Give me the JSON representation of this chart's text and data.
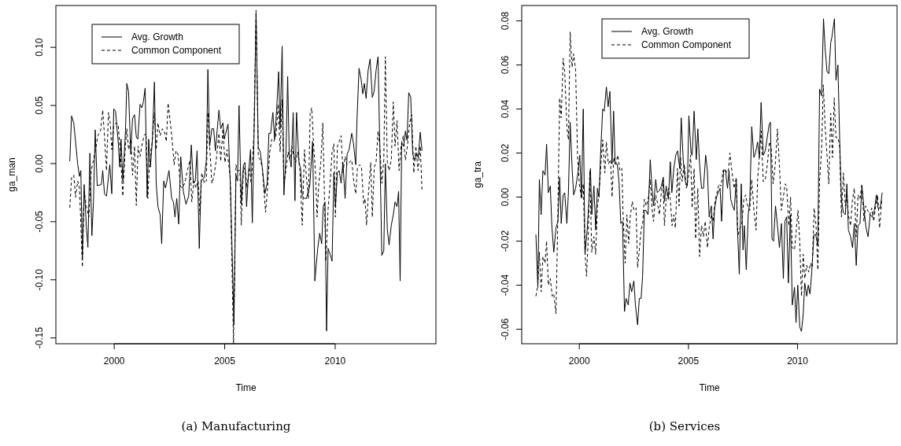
{
  "chart_data": [
    {
      "type": "line",
      "xlabel": "Time",
      "ylabel": "ga_man",
      "annotations": [
        "(a) Manufacturing"
      ],
      "legend": "top left",
      "xlim": [
        1997.36,
        2014.56
      ],
      "ylim": [
        -0.155,
        0.136
      ],
      "xticks": [
        2000,
        2005,
        2010
      ],
      "yticks": [
        {
          "value": -0.15,
          "label": "-0.15"
        },
        {
          "value": -0.1,
          "label": "-0.10"
        },
        {
          "value": -0.05,
          "label": "-0.05"
        },
        {
          "value": 0,
          "label": "0.00"
        },
        {
          "value": 0.05,
          "label": "0.05"
        },
        {
          "value": 0.1,
          "label": "0.10"
        }
      ],
      "series": [
        {
          "name": "Avg. Growth",
          "color": "#000000",
          "line_style": "solid",
          "x": [
            1997.99,
            1998.07,
            1998.17,
            1998.35,
            1998.43,
            1998.49,
            1998.56,
            1998.64,
            1998.74,
            1998.81,
            1998.9,
            1998.99,
            1999.06,
            1999.14,
            1999.23,
            1999.42,
            1999.48,
            1999.56,
            1999.65,
            1999.8,
            1999.89,
            1999.98,
            2000.06,
            2000.18,
            2000.25,
            2000.31,
            2000.39,
            2000.51,
            2000.57,
            2000.65,
            2000.75,
            2000.83,
            2000.92,
            2001.0,
            2001.07,
            2001.17,
            2001.25,
            2001.32,
            2001.4,
            2001.49,
            2001.56,
            2001.64,
            2001.73,
            2001.82,
            2001.9,
            2001.98,
            2002.08,
            2002.15,
            2002.24,
            2002.32,
            2002.48,
            2002.6,
            2002.68,
            2002.75,
            2002.83,
            2002.92,
            2003.01,
            2003.13,
            2003.25,
            2003.37,
            2003.49,
            2003.58,
            2003.67,
            2003.75,
            2003.85,
            2003.93,
            2004.08,
            2004.17,
            2004.24,
            2004.32,
            2004.42,
            2004.5,
            2004.58,
            2004.74,
            2004.82,
            2004.92,
            2004.98,
            2005.15,
            2005.27,
            2005.42,
            2005.51,
            2005.58,
            2005.65,
            2005.75,
            2005.85,
            2005.92,
            2005.99,
            2006.08,
            2006.17,
            2006.25,
            2006.35,
            2006.42,
            2006.52,
            2006.61,
            2006.7,
            2006.82,
            2006.92,
            2007.0,
            2007.08,
            2007.18,
            2007.26,
            2007.35,
            2007.44,
            2007.51,
            2007.6,
            2007.68,
            2007.77,
            2007.85,
            2007.92,
            2008.01,
            2008.1,
            2008.18,
            2008.25,
            2008.37,
            2008.43,
            2008.51,
            2008.61,
            2008.7,
            2008.85,
            2008.98,
            2009.08,
            2009.21,
            2009.3,
            2009.39,
            2009.46,
            2009.54,
            2009.61,
            2009.68,
            2009.77,
            2009.86,
            2009.94,
            2010.01,
            2010.1,
            2010.18,
            2010.27,
            2010.35,
            2010.45,
            2010.54,
            2010.63,
            2010.75,
            2010.83,
            2010.93,
            2010.99,
            2011.08,
            2011.17,
            2011.25,
            2011.32,
            2011.4,
            2011.49,
            2011.58,
            2011.68,
            2011.76,
            2011.85,
            2011.94,
            2012.02,
            2012.11,
            2012.2,
            2012.27,
            2012.36,
            2012.44,
            2012.54,
            2012.63,
            2012.71,
            2012.8,
            2012.87,
            2012.94,
            2013.01,
            2013.1,
            2013.18,
            2013.25,
            2013.33,
            2013.42,
            2013.51,
            2013.61,
            2013.69,
            2013.76,
            2013.85,
            2013.93
          ],
          "values": [
            0.002,
            0.041,
            0.035,
            -0.001,
            -0.011,
            -0.006,
            -0.081,
            -0.018,
            -0.055,
            -0.072,
            0.009,
            -0.062,
            -0.033,
            0.029,
            -0.019,
            -0.018,
            -0.006,
            -0.026,
            -0.028,
            -0.001,
            -0.026,
            0.047,
            0.045,
            0.019,
            -0.003,
            0.021,
            -0.015,
            0.028,
            0.069,
            0.062,
            0.008,
            0.039,
            0.042,
            0.023,
            0.021,
            0.051,
            0.048,
            0.053,
            0.065,
            -0.029,
            0.021,
            -0.003,
            0.021,
            0.07,
            -0.017,
            -0.037,
            -0.044,
            -0.069,
            -0.015,
            -0.021,
            -0.006,
            -0.03,
            -0.033,
            -0.046,
            -0.03,
            -0.052,
            0.006,
            -0.024,
            -0.035,
            -0.028,
            0.016,
            -0.017,
            -0.015,
            0.011,
            -0.073,
            -0.015,
            -0.012,
            0.003,
            0.081,
            0.015,
            0.03,
            0.03,
            0.011,
            0.046,
            0.03,
            0.035,
            0.021,
            0.034,
            -0.026,
            -0.139,
            -0.01,
            -0.015,
            0.05,
            -0.035,
            -0.001,
            0.001,
            -0.037,
            -0.008,
            0.012,
            -0.051,
            0.046,
            0.13,
            0.014,
            0.01,
            -0.003,
            -0.026,
            -0.017,
            0.026,
            0.026,
            0.044,
            0.021,
            0.046,
            0.079,
            0.03,
            0.101,
            -0.027,
            0.006,
            0.075,
            0.008,
            -0.003,
            0.044,
            -0.032,
            0.044,
            -0.001,
            -0.003,
            -0.028,
            -0.03,
            -0.03,
            -0.019,
            0.019,
            -0.101,
            -0.073,
            -0.06,
            -0.069,
            -0.037,
            -0.033,
            -0.144,
            -0.073,
            -0.078,
            -0.084,
            -0.008,
            -0.037,
            -0.008,
            -0.006,
            -0.017,
            0.001,
            -0.03,
            0.008,
            0.012,
            0.026,
            0.017,
            -0.001,
            0.039,
            0.082,
            0.073,
            0.06,
            0.069,
            0.056,
            0.08,
            0.09,
            0.057,
            0.062,
            0.08,
            0.092,
            0.015,
            -0.079,
            -0.075,
            0.0,
            -0.057,
            -0.07,
            -0.053,
            -0.044,
            -0.033,
            -0.037,
            -0.024,
            -0.101,
            0.018,
            0.015,
            0.028,
            0.02,
            0.061,
            0.057,
            0.008,
            0.003,
            0.009,
            0.005,
            0.027,
            0.011
          ]
        },
        {
          "name": "Common Component",
          "color": "#000000",
          "line_style": "dashed",
          "x": [
            1997.99,
            1998.07,
            1998.17,
            1998.25,
            1998.35,
            1998.43,
            1998.56,
            1998.64,
            1998.74,
            1998.85,
            1998.96,
            1999.06,
            1999.14,
            1999.26,
            1999.38,
            1999.48,
            1999.56,
            1999.65,
            1999.74,
            1999.82,
            1999.89,
            1999.98,
            2000.1,
            2000.18,
            2000.27,
            2000.39,
            2000.49,
            2000.57,
            2000.65,
            2000.75,
            2000.83,
            2000.92,
            2001.0,
            2001.08,
            2001.17,
            2001.25,
            2001.35,
            2001.44,
            2001.52,
            2001.61,
            2001.7,
            2001.82,
            2001.9,
            2001.98,
            2002.08,
            2002.18,
            2002.27,
            2002.36,
            2002.44,
            2002.54,
            2002.63,
            2002.71,
            2002.8,
            2002.89,
            2002.99,
            2003.07,
            2003.19,
            2003.31,
            2003.43,
            2003.51,
            2003.61,
            2003.7,
            2003.8,
            2003.88,
            2003.96,
            2004.08,
            2004.17,
            2004.24,
            2004.32,
            2004.42,
            2004.5,
            2004.62,
            2004.74,
            2004.82,
            2004.92,
            2005.01,
            2005.11,
            2005.25,
            2005.4,
            2005.51,
            2005.58,
            2005.69,
            2005.75,
            2005.85,
            2005.93,
            2006.01,
            2006.11,
            2006.2,
            2006.32,
            2006.42,
            2006.52,
            2006.61,
            2006.7,
            2006.85,
            2006.94,
            2007.04,
            2007.13,
            2007.23,
            2007.32,
            2007.42,
            2007.51,
            2007.6,
            2007.68,
            2007.77,
            2007.87,
            2007.95,
            2008.04,
            2008.13,
            2008.21,
            2008.3,
            2008.39,
            2008.51,
            2008.61,
            2008.7,
            2008.79,
            2008.87,
            2008.94,
            2009.02,
            2009.11,
            2009.18,
            2009.26,
            2009.35,
            2009.44,
            2009.51,
            2009.58,
            2009.68,
            2009.77,
            2009.86,
            2009.94,
            2010.01,
            2010.1,
            2010.18,
            2010.27,
            2010.35,
            2010.45,
            2010.54,
            2010.63,
            2010.75,
            2010.85,
            2010.93,
            2011.01,
            2011.11,
            2011.19,
            2011.29,
            2011.35,
            2011.42,
            2011.51,
            2011.61,
            2011.68,
            2011.77,
            2011.85,
            2011.94,
            2012.02,
            2012.11,
            2012.2,
            2012.27,
            2012.36,
            2012.44,
            2012.54,
            2012.63,
            2012.71,
            2012.8,
            2012.89,
            2012.98,
            2013.08,
            2013.18,
            2013.27,
            2013.37,
            2013.46,
            2013.56,
            2013.65,
            2013.75,
            2013.85,
            2013.93
          ],
          "values": [
            -0.038,
            -0.012,
            -0.01,
            -0.029,
            -0.015,
            -0.021,
            -0.089,
            -0.024,
            -0.037,
            -0.046,
            -0.006,
            0.003,
            0.01,
            0.024,
            0.028,
            0.046,
            0.024,
            -0.006,
            0.044,
            0.035,
            0.012,
            0.033,
            0.035,
            0.033,
            0.012,
            -0.028,
            0.01,
            0.03,
            0.012,
            0.021,
            -0.01,
            0.015,
            -0.036,
            0.015,
            0.006,
            0.015,
            0.024,
            0.026,
            -0.03,
            0.006,
            0.015,
            0.044,
            0.012,
            0.035,
            0.024,
            0.03,
            0.028,
            0.019,
            0.052,
            0.035,
            0.019,
            -0.001,
            0.011,
            0.008,
            -0.019,
            -0.021,
            -0.017,
            -0.006,
            0.003,
            -0.033,
            -0.015,
            -0.021,
            -0.015,
            -0.044,
            -0.008,
            -0.017,
            -0.015,
            0.044,
            0.015,
            -0.017,
            -0.012,
            0.003,
            0.026,
            0.002,
            0.03,
            0.001,
            0.012,
            -0.012,
            -0.155,
            -0.001,
            -0.006,
            -0.006,
            -0.053,
            -0.003,
            -0.006,
            -0.021,
            -0.003,
            -0.017,
            0.024,
            0.132,
            0.006,
            0.003,
            -0.003,
            -0.042,
            -0.021,
            0.01,
            0.021,
            0.019,
            0.024,
            0.051,
            0.01,
            0.055,
            -0.017,
            -0.006,
            0.01,
            0.003,
            0.015,
            0.006,
            0.001,
            0.01,
            -0.001,
            -0.053,
            0.012,
            -0.012,
            -0.03,
            0.044,
            0.048,
            0.017,
            -0.008,
            -0.046,
            -0.017,
            0.001,
            0.035,
            -0.024,
            -0.084,
            -0.039,
            -0.017,
            0.01,
            0.017,
            -0.046,
            0.015,
            0.019,
            0.024,
            -0.008,
            0.006,
            -0.001,
            0.001,
            0.003,
            -0.017,
            -0.026,
            -0.003,
            -0.001,
            -0.003,
            -0.035,
            -0.03,
            -0.053,
            -0.024,
            0.001,
            -0.046,
            -0.003,
            0.001,
            0.028,
            0.015,
            -0.017,
            0.003,
            0.092,
            0.001,
            -0.006,
            0.003,
            0.053,
            0.015,
            0.037,
            -0.006,
            0.015,
            0.024,
            0.003,
            0.015,
            0.035,
            0.042,
            -0.008,
            0.015,
            -0.006,
            0.015,
            -0.024
          ]
        }
      ]
    },
    {
      "type": "line",
      "xlabel": "Time",
      "ylabel": "ga_tra",
      "annotations": [
        "(b) Services"
      ],
      "legend": "top left",
      "xlim": [
        1997.36,
        2014.56
      ],
      "ylim": [
        -0.0666,
        0.087
      ],
      "xticks": [
        2000,
        2005,
        2010
      ],
      "yticks": [
        {
          "value": -0.06,
          "label": "-0.06"
        },
        {
          "value": -0.04,
          "label": "-0.04"
        },
        {
          "value": -0.02,
          "label": "-0.02"
        },
        {
          "value": 0,
          "label": "0.00"
        },
        {
          "value": 0.02,
          "label": "0.02"
        },
        {
          "value": 0.04,
          "label": "0.04"
        },
        {
          "value": 0.06,
          "label": "0.06"
        },
        {
          "value": 0.08,
          "label": "0.08"
        }
      ],
      "series": [
        {
          "name": "Avg. Growth",
          "color": "#000000",
          "line_style": "solid",
          "x": [
            1998.01,
            1998.1,
            1998.17,
            1998.25,
            1998.33,
            1998.43,
            1998.5,
            1998.58,
            1998.67,
            1998.74,
            1998.83,
            1998.93,
            1999.02,
            1999.1,
            1999.17,
            1999.26,
            1999.33,
            1999.43,
            1999.5,
            1999.58,
            1999.67,
            1999.74,
            1999.83,
            1999.95,
            2000.02,
            2000.1,
            2000.18,
            2000.26,
            2000.36,
            2000.45,
            2000.51,
            2000.57,
            2000.67,
            2000.75,
            2000.83,
            2000.9,
            2000.99,
            2001.07,
            2001.14,
            2001.24,
            2001.32,
            2001.4,
            2001.5,
            2001.57,
            2001.64,
            2001.74,
            2001.82,
            2001.9,
            2001.98,
            2002.07,
            2002.14,
            2002.24,
            2002.32,
            2002.4,
            2002.5,
            2002.57,
            2002.67,
            2002.75,
            2002.83,
            2002.9,
            2002.98,
            2003.05,
            2003.15,
            2003.25,
            2003.33,
            2003.4,
            2003.5,
            2003.57,
            2003.67,
            2003.76,
            2003.85,
            2003.9,
            2003.98,
            2004.08,
            2004.17,
            2004.24,
            2004.33,
            2004.42,
            2004.5,
            2004.6,
            2004.67,
            2004.76,
            2004.86,
            2004.95,
            2005.02,
            2005.12,
            2005.17,
            2005.26,
            2005.36,
            2005.43,
            2005.51,
            2005.6,
            2005.69,
            2005.79,
            2005.87,
            2005.95,
            2006.05,
            2006.13,
            2006.2,
            2006.29,
            2006.36,
            2006.45,
            2006.52,
            2006.61,
            2006.7,
            2006.79,
            2006.86,
            2006.94,
            2007.02,
            2007.1,
            2007.19,
            2007.24,
            2007.33,
            2007.42,
            2007.5,
            2007.56,
            2007.65,
            2007.74,
            2007.81,
            2007.9,
            2008.0,
            2008.07,
            2008.17,
            2008.25,
            2008.33,
            2008.43,
            2008.52,
            2008.61,
            2008.7,
            2008.76,
            2008.83,
            2008.9,
            2008.99,
            2009.08,
            2009.17,
            2009.26,
            2009.35,
            2009.42,
            2009.5,
            2009.58,
            2009.67,
            2009.76,
            2009.86,
            2009.93,
            2010.01,
            2010.1,
            2010.18,
            2010.26,
            2010.33,
            2010.42,
            2010.49,
            2010.57,
            2010.65,
            2010.75,
            2010.83,
            2010.93,
            2011.01,
            2011.1,
            2011.19,
            2011.26,
            2011.35,
            2011.43,
            2011.52,
            2011.58,
            2011.69,
            2011.76,
            2011.85,
            2011.93,
            2012.01,
            2012.1,
            2012.19,
            2012.26,
            2012.33,
            2012.43,
            2012.52,
            2012.6,
            2012.69,
            2012.77,
            2012.86,
            2012.95,
            2013.05,
            2013.14,
            2013.23,
            2013.33,
            2013.42,
            2013.52,
            2013.61,
            2013.69,
            2013.79,
            2013.88
          ],
          "values": [
            -0.017,
            -0.041,
            0.008,
            -0.008,
            0.012,
            0.01,
            0.024,
            0.002,
            0.005,
            -0.013,
            -0.025,
            -0.014,
            -0.011,
            0.009,
            -0.012,
            0.001,
            0.002,
            -0.012,
            0.002,
            0.034,
            0.013,
            0.001,
            0.004,
            0.012,
            0.019,
            0.0,
            0.04,
            -0.026,
            -0.015,
            0.0,
            0.013,
            -0.008,
            0.005,
            -0.015,
            0.004,
            0.0,
            0.023,
            0.04,
            0.039,
            0.05,
            0.041,
            0.048,
            0.015,
            0.039,
            0.015,
            0.015,
            0.007,
            -0.012,
            -0.011,
            -0.052,
            -0.046,
            -0.049,
            -0.039,
            -0.043,
            -0.038,
            -0.049,
            -0.058,
            -0.046,
            -0.046,
            -0.036,
            -0.006,
            -0.006,
            -0.008,
            0.017,
            0.004,
            -0.004,
            0.008,
            0.002,
            0.003,
            0.005,
            0.009,
            -0.002,
            0.005,
            -0.001,
            0.016,
            0.002,
            0.013,
            0.019,
            0.021,
            0.013,
            0.036,
            0.017,
            0.007,
            0.005,
            0.037,
            0.02,
            0.019,
            0.039,
            0.017,
            0.031,
            0.015,
            0.004,
            0.004,
            0.019,
            0.012,
            -0.009,
            -0.004,
            -0.019,
            -0.005,
            0.0,
            0.002,
            0.004,
            -0.011,
            0.012,
            0.012,
            0.004,
            0.012,
            -0.001,
            -0.004,
            -0.006,
            0.008,
            -0.012,
            -0.035,
            0.006,
            -0.024,
            -0.013,
            -0.033,
            -0.008,
            -0.002,
            0.032,
            0.018,
            0.02,
            0.025,
            0.018,
            0.043,
            0.019,
            0.021,
            0.027,
            0.033,
            0.034,
            -0.019,
            -0.02,
            -0.004,
            -0.013,
            -0.023,
            -0.012,
            -0.037,
            -0.011,
            -0.009,
            -0.039,
            -0.008,
            -0.049,
            -0.041,
            -0.057,
            -0.04,
            -0.059,
            -0.061,
            -0.053,
            -0.039,
            -0.045,
            -0.04,
            -0.044,
            -0.034,
            -0.017,
            -0.017,
            -0.022,
            0.049,
            0.046,
            0.081,
            0.068,
            0.057,
            0.056,
            0.07,
            0.073,
            0.081,
            0.053,
            0.06,
            0.026,
            -0.001,
            -0.007,
            -0.008,
            0.006,
            -0.015,
            -0.018,
            -0.023,
            -0.012,
            -0.031,
            -0.013,
            -0.012,
            0.005,
            -0.006,
            -0.014,
            -0.018,
            -0.008,
            -0.009,
            -0.006,
            0.001,
            -0.005,
            -0.005,
            0.002
          ]
        },
        {
          "name": "Common Component",
          "color": "#000000",
          "line_style": "dashed",
          "x": [
            1998.01,
            1998.1,
            1998.17,
            1998.25,
            1998.33,
            1998.43,
            1998.5,
            1998.58,
            1998.67,
            1998.76,
            1998.83,
            1998.93,
            1999.0,
            1999.1,
            1999.17,
            1999.26,
            1999.33,
            1999.43,
            1999.5,
            1999.58,
            1999.67,
            1999.74,
            1999.83,
            1999.92,
            2000.0,
            2000.1,
            2000.18,
            2000.26,
            2000.33,
            2000.4,
            2000.48,
            2000.57,
            2000.67,
            2000.75,
            2000.83,
            2000.9,
            2001.0,
            2001.07,
            2001.17,
            2001.24,
            2001.33,
            2001.43,
            2001.5,
            2001.58,
            2001.67,
            2001.76,
            2001.86,
            2001.95,
            2002.0,
            2002.1,
            2002.18,
            2002.26,
            2002.33,
            2002.43,
            2002.5,
            2002.6,
            2002.67,
            2002.75,
            2002.83,
            2002.9,
            2002.98,
            2003.07,
            2003.17,
            2003.25,
            2003.33,
            2003.4,
            2003.5,
            2003.57,
            2003.67,
            2003.75,
            2003.83,
            2003.9,
            2003.98,
            2004.1,
            2004.17,
            2004.25,
            2004.33,
            2004.4,
            2004.5,
            2004.57,
            2004.64,
            2004.71,
            2004.81,
            2004.9,
            2005.0,
            2005.1,
            2005.17,
            2005.26,
            2005.33,
            2005.43,
            2005.51,
            2005.6,
            2005.69,
            2005.77,
            2005.87,
            2005.95,
            2006.05,
            2006.13,
            2006.23,
            2006.31,
            2006.4,
            2006.5,
            2006.58,
            2006.67,
            2006.76,
            2006.83,
            2006.9,
            2007.0,
            2007.1,
            2007.19,
            2007.26,
            2007.36,
            2007.45,
            2007.54,
            2007.62,
            2007.71,
            2007.81,
            2007.9,
            2008.0,
            2008.1,
            2008.17,
            2008.25,
            2008.33,
            2008.43,
            2008.52,
            2008.62,
            2008.71,
            2008.79,
            2008.88,
            2008.98,
            2009.08,
            2009.17,
            2009.26,
            2009.35,
            2009.43,
            2009.5,
            2009.6,
            2009.68,
            2009.76,
            2009.86,
            2009.94,
            2010.02,
            2010.1,
            2010.18,
            2010.26,
            2010.33,
            2010.42,
            2010.51,
            2010.6,
            2010.67,
            2010.76,
            2010.85,
            2010.93,
            2011.01,
            2011.1,
            2011.18,
            2011.26,
            2011.35,
            2011.43,
            2011.52,
            2011.6,
            2011.68,
            2011.76,
            2011.85,
            2011.93,
            2012.01,
            2012.1,
            2012.19,
            2012.26,
            2012.33,
            2012.43,
            2012.51,
            2012.6,
            2012.69,
            2012.77,
            2012.86,
            2012.95,
            2013.04,
            2013.12,
            2013.21,
            2013.31,
            2013.4,
            2013.49,
            2013.58,
            2013.67,
            2013.76,
            2013.86
          ],
          "values": [
            -0.045,
            -0.04,
            -0.025,
            -0.043,
            -0.027,
            -0.03,
            -0.02,
            -0.04,
            -0.037,
            -0.045,
            -0.044,
            -0.053,
            -0.018,
            0.045,
            0.036,
            0.063,
            0.057,
            0.032,
            0.026,
            0.075,
            0.059,
            0.065,
            0.058,
            0.018,
            0.006,
            -0.001,
            0.006,
            -0.025,
            -0.036,
            -0.021,
            0.012,
            -0.025,
            -0.018,
            -0.026,
            -0.004,
            0.001,
            0.017,
            0.026,
            0.011,
            0.025,
            0.015,
            0.017,
            0.0,
            0.018,
            0.015,
            0.019,
            0.012,
            0.013,
            -0.006,
            -0.03,
            -0.008,
            -0.021,
            -0.009,
            -0.002,
            -0.006,
            -0.005,
            -0.032,
            -0.024,
            -0.015,
            -0.012,
            -0.001,
            -0.004,
            0.0,
            0.008,
            -0.005,
            -0.011,
            0.001,
            -0.002,
            -0.008,
            0.001,
            0.008,
            -0.013,
            -0.001,
            0.004,
            -0.001,
            -0.013,
            -0.008,
            -0.014,
            0.013,
            -0.004,
            0.018,
            0.007,
            0.015,
            0.004,
            0.009,
            0.019,
            -0.005,
            0.013,
            -0.019,
            0.004,
            -0.027,
            -0.013,
            -0.018,
            -0.011,
            -0.023,
            -0.014,
            -0.008,
            -0.011,
            -0.001,
            0.002,
            0.006,
            0.005,
            0.012,
            0.013,
            0.011,
            0.012,
            0.02,
            0.011,
            0.004,
            0.009,
            -0.018,
            -0.014,
            -0.012,
            -0.001,
            0.001,
            -0.004,
            -0.006,
            0.008,
            -0.006,
            -0.015,
            0.008,
            0.018,
            0.03,
            0.007,
            0.008,
            0.015,
            0.025,
            0.023,
            0.006,
            0.015,
            0.031,
            0.014,
            -0.006,
            0.0,
            0.006,
            0.005,
            -0.013,
            0.0,
            -0.023,
            -0.024,
            -0.015,
            -0.006,
            -0.02,
            -0.045,
            -0.026,
            -0.037,
            -0.031,
            -0.034,
            -0.03,
            -0.032,
            -0.005,
            -0.013,
            -0.033,
            0.008,
            0.021,
            0.051,
            0.033,
            0.019,
            0.006,
            0.038,
            0.018,
            0.045,
            0.027,
            0.027,
            0.023,
            -0.009,
            0.011,
            -0.004,
            0.001,
            -0.008,
            -0.013,
            -0.002,
            0.004,
            -0.018,
            0.001,
            -0.001,
            0.006,
            -0.011,
            -0.004,
            -0.006,
            -0.008,
            -0.005,
            -0.011,
            -0.004,
            0.001,
            -0.014,
            -0.001
          ]
        }
      ]
    }
  ]
}
